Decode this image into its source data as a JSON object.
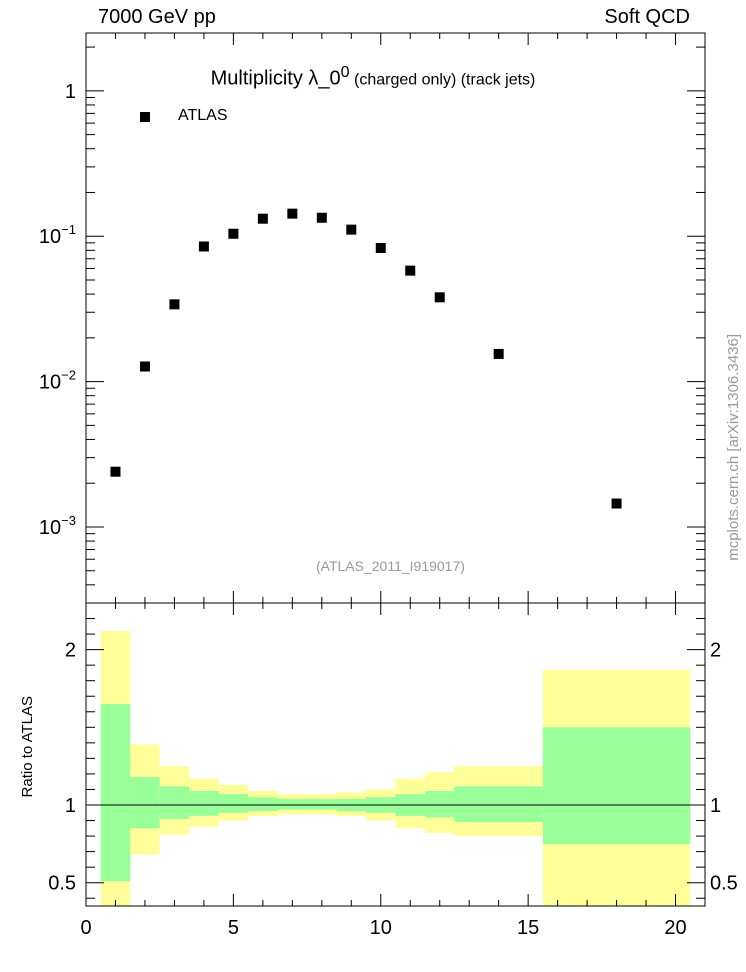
{
  "header": {
    "left": "7000 GeV pp",
    "right": "Soft QCD"
  },
  "side_text": "mcplots.cern.ch [arXiv:1306.3436]",
  "watermark": "(ATLAS_2011_I919017)",
  "colors": {
    "band_inner": "#99ff99",
    "band_outer": "#ffff99",
    "marker": "#000000",
    "ref_line": "#000000"
  },
  "chart_data": [
    {
      "type": "scatter",
      "title": {
        "main": "Multiplicity  λ_0",
        "sup": "0",
        "sub": " (charged only) (track jets)"
      },
      "xlabel": "",
      "ylabel": "",
      "y_scale": "log",
      "xlim": [
        0,
        21
      ],
      "ylim": [
        0.0003,
        2.5
      ],
      "ytick_labels": [
        {
          "value": 1,
          "base": "1",
          "exp": ""
        },
        {
          "value": 0.1,
          "base": "10",
          "exp": "−1"
        },
        {
          "value": 0.01,
          "base": "10",
          "exp": "−2"
        },
        {
          "value": 0.001,
          "base": "10",
          "exp": "−3"
        }
      ],
      "legend": {
        "entries": [
          "ATLAS"
        ],
        "position": "top-left"
      },
      "series": [
        {
          "name": "ATLAS",
          "x": [
            1,
            2,
            3,
            4,
            5,
            6,
            7,
            8,
            9,
            10,
            11,
            12,
            14,
            18
          ],
          "y": [
            0.0024,
            0.0127,
            0.034,
            0.085,
            0.104,
            0.132,
            0.143,
            0.134,
            0.111,
            0.083,
            0.058,
            0.038,
            0.0155,
            0.00145
          ]
        }
      ]
    },
    {
      "type": "area",
      "ylabel": "Ratio to ATLAS",
      "xlim": [
        0,
        21
      ],
      "ylim": [
        0.35,
        2.3
      ],
      "xtick_labels": [
        "0",
        "5",
        "10",
        "15",
        "20"
      ],
      "ytick_labels": [
        "0.5",
        "1",
        "2"
      ],
      "reference_line": 1,
      "bins": [
        {
          "lo": 0.5,
          "hi": 1.5,
          "inner": [
            0.51,
            1.65
          ],
          "outer": [
            0.35,
            2.12
          ]
        },
        {
          "lo": 1.5,
          "hi": 2.5,
          "inner": [
            0.85,
            1.18
          ],
          "outer": [
            0.68,
            1.39
          ]
        },
        {
          "lo": 2.5,
          "hi": 3.5,
          "inner": [
            0.91,
            1.12
          ],
          "outer": [
            0.81,
            1.25
          ]
        },
        {
          "lo": 3.5,
          "hi": 4.5,
          "inner": [
            0.93,
            1.09
          ],
          "outer": [
            0.86,
            1.17
          ]
        },
        {
          "lo": 4.5,
          "hi": 5.5,
          "inner": [
            0.95,
            1.07
          ],
          "outer": [
            0.9,
            1.13
          ]
        },
        {
          "lo": 5.5,
          "hi": 6.5,
          "inner": [
            0.96,
            1.05
          ],
          "outer": [
            0.93,
            1.09
          ]
        },
        {
          "lo": 6.5,
          "hi": 7.5,
          "inner": [
            0.97,
            1.04
          ],
          "outer": [
            0.94,
            1.07
          ]
        },
        {
          "lo": 7.5,
          "hi": 8.5,
          "inner": [
            0.97,
            1.04
          ],
          "outer": [
            0.94,
            1.07
          ]
        },
        {
          "lo": 8.5,
          "hi": 9.5,
          "inner": [
            0.96,
            1.04
          ],
          "outer": [
            0.93,
            1.08
          ]
        },
        {
          "lo": 9.5,
          "hi": 10.5,
          "inner": [
            0.95,
            1.05
          ],
          "outer": [
            0.9,
            1.1
          ]
        },
        {
          "lo": 10.5,
          "hi": 11.5,
          "inner": [
            0.93,
            1.07
          ],
          "outer": [
            0.85,
            1.17
          ]
        },
        {
          "lo": 11.5,
          "hi": 12.5,
          "inner": [
            0.92,
            1.09
          ],
          "outer": [
            0.82,
            1.21
          ]
        },
        {
          "lo": 12.5,
          "hi": 15.5,
          "inner": [
            0.89,
            1.12
          ],
          "outer": [
            0.8,
            1.25
          ]
        },
        {
          "lo": 15.5,
          "hi": 20.5,
          "inner": [
            0.75,
            1.5
          ],
          "outer": [
            0.35,
            1.87
          ]
        }
      ]
    }
  ]
}
